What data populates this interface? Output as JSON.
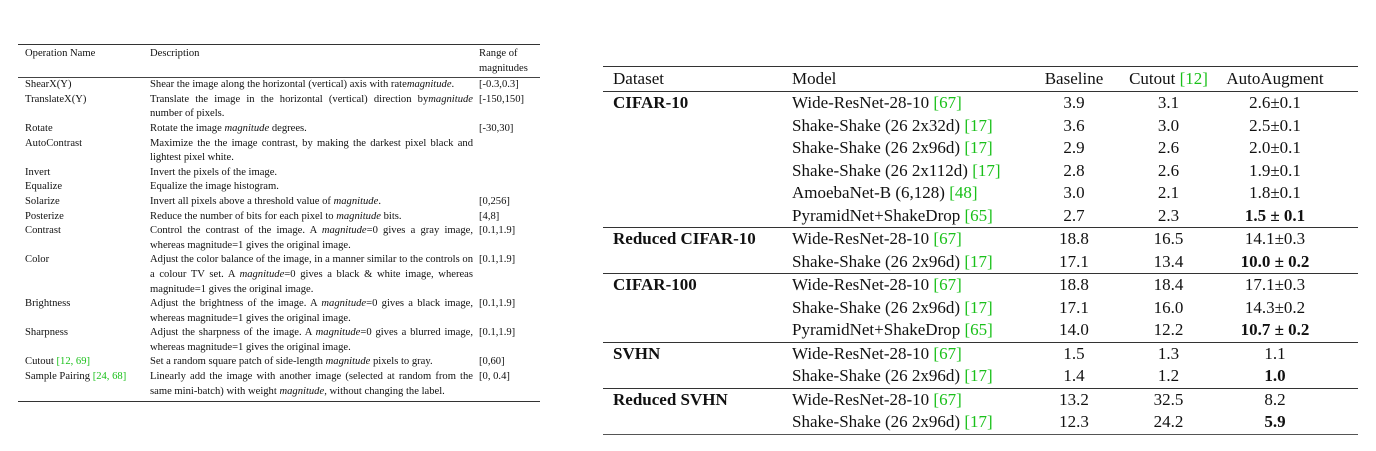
{
  "operations_table": {
    "headers": {
      "name": "Operation Name",
      "description": "Description",
      "range": "Range of magnitudes"
    },
    "rows": [
      {
        "name": "ShearX(Y)",
        "description": "Shear the image along the horizontal (vertical) axis with rate",
        "description_italic": "magnitude",
        "description_end": ".",
        "range": "[-0.3,0.3]"
      },
      {
        "name": "TranslateX(Y)",
        "description": "Translate the image in the horizontal (vertical) direction by",
        "description_italic": "magnitude",
        "description_end": " number of pixels.",
        "range": "[-150,150]"
      },
      {
        "name": "Rotate",
        "description": "Rotate the image ",
        "description_italic": "magnitude",
        "description_end": " degrees.",
        "range": "[-30,30]"
      },
      {
        "name": "AutoContrast",
        "description": "Maximize the the image contrast, by making the darkest pixel black and lightest pixel white.",
        "description_italic": "",
        "description_end": "",
        "range": ""
      },
      {
        "name": "Invert",
        "description": "Invert the pixels of the image.",
        "description_italic": "",
        "description_end": "",
        "range": ""
      },
      {
        "name": "Equalize",
        "description": "Equalize the image histogram.",
        "description_italic": "",
        "description_end": "",
        "range": ""
      },
      {
        "name": "Solarize",
        "description": "Invert all pixels above a threshold value of ",
        "description_italic": "magnitude",
        "description_end": ".",
        "range": "[0,256]"
      },
      {
        "name": "Posterize",
        "description": "Reduce the number of bits for each pixel to ",
        "description_italic": "magnitude",
        "description_end": " bits.",
        "range": "[4,8]"
      },
      {
        "name": "Contrast",
        "description": "Control the contrast of the image. A ",
        "description_italic": "magnitude",
        "description_end": "=0 gives a gray image, whereas magnitude=1 gives the original image.",
        "range": "[0.1,1.9]"
      },
      {
        "name": "Color",
        "description": "Adjust the color balance of the image, in a manner similar to the controls on a colour TV set. A ",
        "description_italic": "magnitude",
        "description_end": "=0 gives a black & white image, whereas magnitude=1 gives the original image.",
        "range": "[0.1,1.9]"
      },
      {
        "name": "Brightness",
        "description": "Adjust the brightness of the image. A ",
        "description_italic": "magnitude",
        "description_end": "=0 gives a black image, whereas magnitude=1 gives the original image.",
        "range": "[0.1,1.9]"
      },
      {
        "name": "Sharpness",
        "description": "Adjust the sharpness of the image. A ",
        "description_italic": "magnitude",
        "description_end": "=0 gives a blurred image, whereas magnitude=1 gives the original image.",
        "range": "[0.1,1.9]"
      },
      {
        "name": "Cutout",
        "name_refs": "[12, 69]",
        "description": "Set a random square patch of side-length ",
        "description_italic": "magnitude",
        "description_end": " pixels to gray.",
        "range": "[0,60]"
      },
      {
        "name": "Sample Pairing",
        "name_refs": "[24, 68]",
        "description": "Linearly add the image with another image (selected at random from the same mini-batch) with weight ",
        "description_italic": "magnitude",
        "description_end": ", without changing the label.",
        "range": "[0, 0.4]"
      }
    ]
  },
  "results_table": {
    "headers": {
      "dataset": "Dataset",
      "model": "Model",
      "baseline": "Baseline",
      "cutout": "Cutout",
      "cutout_ref": "[12]",
      "autoaugment": "AutoAugment"
    },
    "groups": [
      {
        "dataset": "CIFAR-10",
        "rows": [
          {
            "model": "Wide-ResNet-28-10",
            "ref": "[67]",
            "baseline": "3.9",
            "cutout": "3.1",
            "autoaugment": "2.6±0.1",
            "bold": false
          },
          {
            "model": "Shake-Shake (26 2x32d)",
            "ref": "[17]",
            "baseline": "3.6",
            "cutout": "3.0",
            "autoaugment": "2.5±0.1",
            "bold": false
          },
          {
            "model": "Shake-Shake (26 2x96d)",
            "ref": "[17]",
            "baseline": "2.9",
            "cutout": "2.6",
            "autoaugment": "2.0±0.1",
            "bold": false
          },
          {
            "model": "Shake-Shake (26 2x112d)",
            "ref": "[17]",
            "baseline": "2.8",
            "cutout": "2.6",
            "autoaugment": "1.9±0.1",
            "bold": false
          },
          {
            "model": "AmoebaNet-B (6,128)",
            "ref": "[48]",
            "baseline": "3.0",
            "cutout": "2.1",
            "autoaugment": "1.8±0.1",
            "bold": false
          },
          {
            "model": "PyramidNet+ShakeDrop",
            "ref": "[65]",
            "baseline": "2.7",
            "cutout": "2.3",
            "autoaugment": "1.5 ± 0.1",
            "bold": true
          }
        ]
      },
      {
        "dataset": "Reduced CIFAR-10",
        "rows": [
          {
            "model": "Wide-ResNet-28-10",
            "ref": "[67]",
            "baseline": "18.8",
            "cutout": "16.5",
            "autoaugment": "14.1±0.3",
            "bold": false
          },
          {
            "model": "Shake-Shake (26 2x96d)",
            "ref": "[17]",
            "baseline": "17.1",
            "cutout": "13.4",
            "autoaugment": "10.0 ± 0.2",
            "bold": true
          }
        ]
      },
      {
        "dataset": "CIFAR-100",
        "rows": [
          {
            "model": "Wide-ResNet-28-10",
            "ref": "[67]",
            "baseline": "18.8",
            "cutout": "18.4",
            "autoaugment": "17.1±0.3",
            "bold": false
          },
          {
            "model": "Shake-Shake (26 2x96d)",
            "ref": "[17]",
            "baseline": "17.1",
            "cutout": "16.0",
            "autoaugment": "14.3±0.2",
            "bold": false
          },
          {
            "model": "PyramidNet+ShakeDrop",
            "ref": "[65]",
            "baseline": "14.0",
            "cutout": "12.2",
            "autoaugment": "10.7 ± 0.2",
            "bold": true
          }
        ]
      },
      {
        "dataset": "SVHN",
        "rows": [
          {
            "model": "Wide-ResNet-28-10",
            "ref": "[67]",
            "baseline": "1.5",
            "cutout": "1.3",
            "autoaugment": "1.1",
            "bold": false
          },
          {
            "model": "Shake-Shake (26 2x96d)",
            "ref": "[17]",
            "baseline": "1.4",
            "cutout": "1.2",
            "autoaugment": "1.0",
            "bold": true
          }
        ]
      },
      {
        "dataset": "Reduced SVHN",
        "rows": [
          {
            "model": "Wide-ResNet-28-10",
            "ref": "[67]",
            "baseline": "13.2",
            "cutout": "32.5",
            "autoaugment": "8.2",
            "bold": false
          },
          {
            "model": "Shake-Shake (26 2x96d)",
            "ref": "[17]",
            "baseline": "12.3",
            "cutout": "24.2",
            "autoaugment": "5.9",
            "bold": true
          }
        ]
      }
    ]
  },
  "colors": {
    "reference_link": "#19c019",
    "text": "#111111",
    "rule": "#333333"
  }
}
